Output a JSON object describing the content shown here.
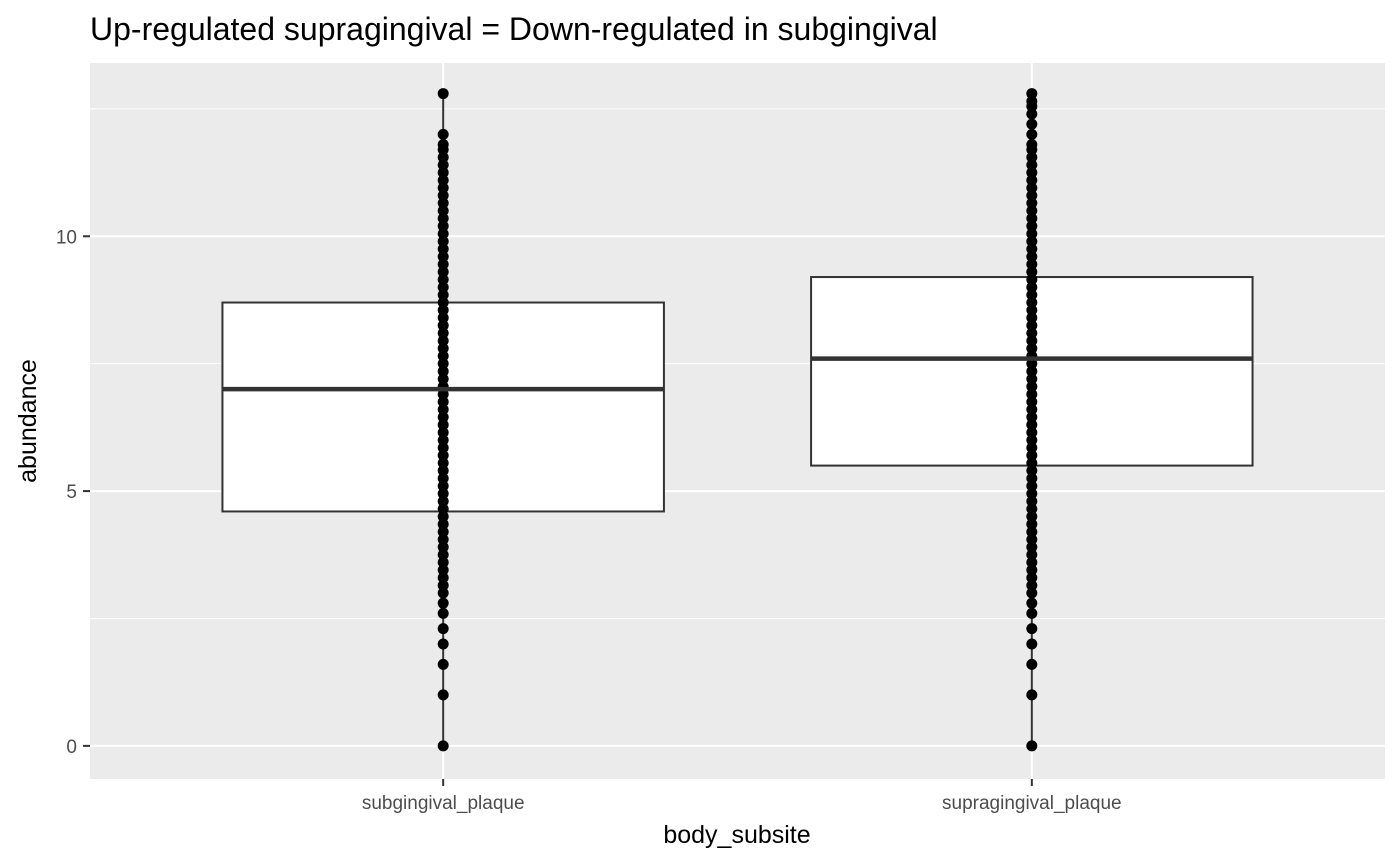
{
  "chart_data": {
    "type": "box",
    "title": "Up-regulated supragingival = Down-regulated in subgingival",
    "xlabel": "body_subsite",
    "ylabel": "abundance",
    "categories": [
      "subgingival_plaque",
      "supragingival_plaque"
    ],
    "ylim": [
      -0.65,
      13.4
    ],
    "yticks": [
      0,
      5,
      10
    ],
    "ytick_labels": [
      "0",
      "5",
      "10"
    ],
    "grid": true,
    "boxes": [
      {
        "category": "subgingival_plaque",
        "q1": 4.6,
        "median": 7.0,
        "q3": 8.7,
        "whisker_low": 0.0,
        "whisker_high": 12.8,
        "points": [
          0.0,
          1.0,
          1.6,
          2.0,
          2.3,
          2.6,
          2.8,
          3.0,
          3.15,
          3.3,
          3.45,
          3.6,
          3.75,
          3.9,
          4.05,
          4.2,
          4.35,
          4.5,
          4.65,
          4.8,
          4.95,
          5.1,
          5.25,
          5.4,
          5.55,
          5.7,
          5.85,
          6.0,
          6.15,
          6.3,
          6.45,
          6.6,
          6.75,
          6.9,
          7.05,
          7.2,
          7.35,
          7.5,
          7.65,
          7.8,
          7.95,
          8.1,
          8.25,
          8.4,
          8.55,
          8.7,
          8.85,
          9.0,
          9.15,
          9.3,
          9.45,
          9.6,
          9.75,
          9.9,
          10.05,
          10.2,
          10.35,
          10.5,
          10.65,
          10.8,
          10.95,
          11.1,
          11.25,
          11.4,
          11.55,
          11.7,
          11.8,
          12.0,
          12.8
        ]
      },
      {
        "category": "supragingival_plaque",
        "q1": 5.5,
        "median": 7.6,
        "q3": 9.2,
        "whisker_low": 0.0,
        "whisker_high": 12.8,
        "points": [
          0.0,
          1.0,
          1.6,
          2.0,
          2.3,
          2.6,
          2.8,
          3.0,
          3.15,
          3.3,
          3.45,
          3.6,
          3.75,
          3.9,
          4.05,
          4.2,
          4.35,
          4.5,
          4.65,
          4.8,
          4.95,
          5.1,
          5.25,
          5.4,
          5.55,
          5.7,
          5.85,
          6.0,
          6.15,
          6.3,
          6.45,
          6.6,
          6.75,
          6.9,
          7.05,
          7.2,
          7.35,
          7.5,
          7.65,
          7.8,
          7.95,
          8.1,
          8.25,
          8.4,
          8.55,
          8.7,
          8.85,
          9.0,
          9.15,
          9.3,
          9.45,
          9.6,
          9.75,
          9.9,
          10.05,
          10.2,
          10.35,
          10.5,
          10.65,
          10.8,
          10.95,
          11.1,
          11.25,
          11.4,
          11.55,
          11.7,
          11.8,
          12.0,
          12.2,
          12.4,
          12.55,
          12.65,
          12.8
        ]
      }
    ],
    "colors": {
      "panel_background": "#ebebeb",
      "grid_line": "#ffffff",
      "box_fill": "#ffffff",
      "box_line": "#333333",
      "point": "#000000",
      "tick_label": "#4d4d4d",
      "text": "#000000"
    }
  }
}
